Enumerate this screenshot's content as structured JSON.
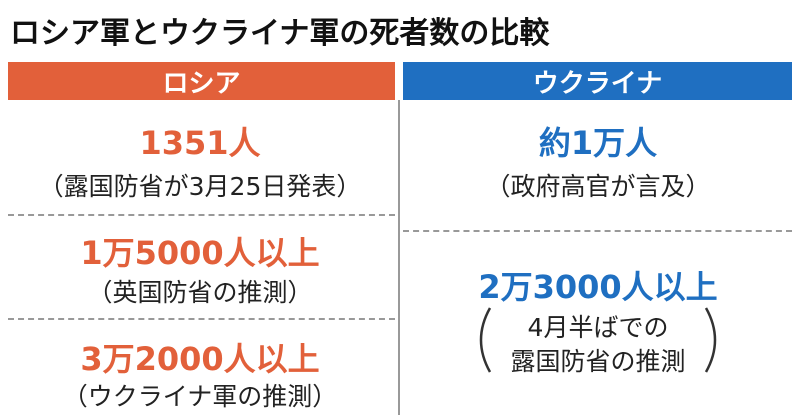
{
  "header": {
    "title": "ロシア軍とウクライナ軍の死者数の比較"
  },
  "columns": [
    {
      "label": "ロシア",
      "entries": [
        {
          "figure": "1351人",
          "note": "（露国防省が3月25日発表）"
        },
        {
          "figure": "1万5000人以上",
          "note": "（英国防省の推測）"
        },
        {
          "figure": "3万2000人以上",
          "note": "（ウクライナ軍の推測）"
        }
      ]
    },
    {
      "label": "ウクライナ",
      "entries": [
        {
          "figure": "約1万人",
          "note": "（政府高官が言及）"
        },
        {
          "figure": "2万3000人以上",
          "note_lines": [
            "4月半ばでの",
            "露国防省の推測"
          ]
        }
      ]
    }
  ]
}
